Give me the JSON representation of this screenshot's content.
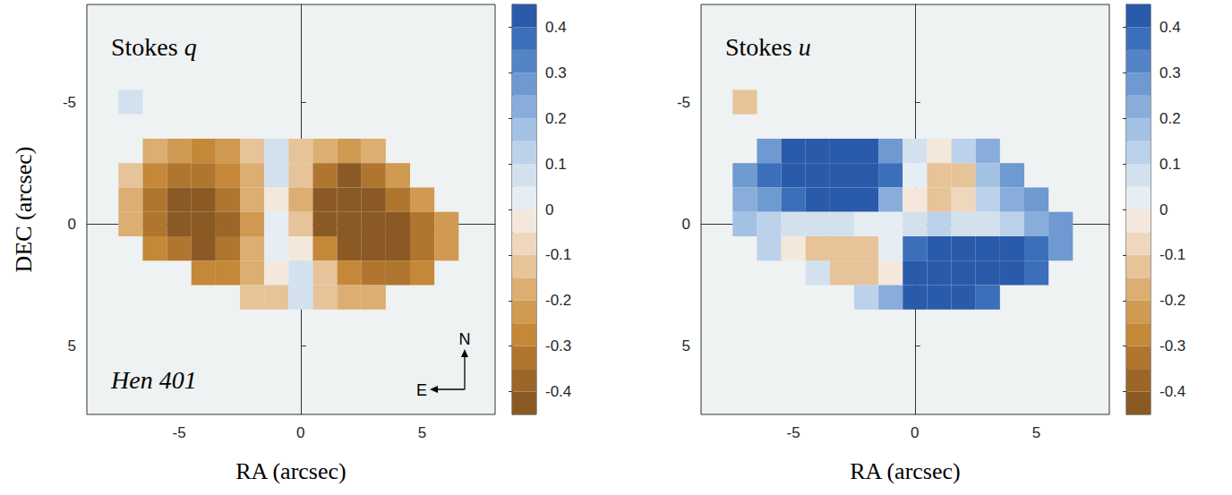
{
  "chart_data": [
    {
      "type": "heatmap",
      "title": "Stokes q",
      "annotation": "Hen 401",
      "compass": {
        "north": "N",
        "east": "E"
      },
      "xlabel": "RA (arcsec)",
      "ylabel": "DEC (arcsec)",
      "xlim": [
        -8.8,
        8
      ],
      "ylim": [
        7.8,
        -9
      ],
      "xticks": [
        -5,
        0,
        5
      ],
      "yticks": [
        -5,
        0,
        5
      ],
      "colorbar": {
        "range": [
          -0.45,
          0.45
        ],
        "ticks": [
          -0.4,
          -0.3,
          -0.2,
          -0.1,
          0,
          0.1,
          0.2,
          0.3,
          0.4
        ],
        "colors": [
          "#8b5a24",
          "#9c6628",
          "#b0752f",
          "#c48838",
          "#d19a52",
          "#dcae72",
          "#e7c39a",
          "#efd7bd",
          "#f4e8dc",
          "#e6eef4",
          "#d3e1ef",
          "#bcd2ea",
          "#a3c1e3",
          "#88addb",
          "#6e99d1",
          "#5484c6",
          "#3c6fba",
          "#2a5aaa"
        ]
      },
      "cells": [
        [
          -7,
          -5,
          0.05
        ],
        [
          -6,
          -3,
          -0.2
        ],
        [
          -5,
          -3,
          -0.25
        ],
        [
          -4,
          -3,
          -0.3
        ],
        [
          -3,
          -3,
          -0.25
        ],
        [
          -2,
          -3,
          -0.15
        ],
        [
          -1,
          -3,
          0.05
        ],
        [
          0,
          -3,
          -0.1
        ],
        [
          1,
          -3,
          -0.2
        ],
        [
          2,
          -3,
          -0.25
        ],
        [
          3,
          -3,
          -0.2
        ],
        [
          -7,
          -2,
          -0.15
        ],
        [
          -6,
          -2,
          -0.3
        ],
        [
          -5,
          -2,
          -0.35
        ],
        [
          -4,
          -2,
          -0.35
        ],
        [
          -3,
          -2,
          -0.3
        ],
        [
          -2,
          -2,
          -0.2
        ],
        [
          -1,
          -2,
          0.05
        ],
        [
          0,
          -2,
          -0.15
        ],
        [
          1,
          -2,
          -0.35
        ],
        [
          2,
          -2,
          -0.4
        ],
        [
          3,
          -2,
          -0.35
        ],
        [
          4,
          -2,
          -0.25
        ],
        [
          -7,
          -1,
          -0.2
        ],
        [
          -6,
          -1,
          -0.35
        ],
        [
          -5,
          -1,
          -0.4
        ],
        [
          -4,
          -1,
          -0.4
        ],
        [
          -3,
          -1,
          -0.35
        ],
        [
          -2,
          -1,
          -0.2
        ],
        [
          -1,
          -1,
          -0.02
        ],
        [
          0,
          -1,
          -0.2
        ],
        [
          1,
          -1,
          -0.4
        ],
        [
          2,
          -1,
          -0.45
        ],
        [
          3,
          -1,
          -0.42
        ],
        [
          4,
          -1,
          -0.35
        ],
        [
          5,
          -1,
          -0.25
        ],
        [
          -7,
          0,
          -0.2
        ],
        [
          -6,
          0,
          -0.35
        ],
        [
          -5,
          0,
          -0.4
        ],
        [
          -4,
          0,
          -0.42
        ],
        [
          -3,
          0,
          -0.38
        ],
        [
          -2,
          0,
          -0.22
        ],
        [
          -1,
          0,
          0
        ],
        [
          0,
          0,
          -0.15
        ],
        [
          1,
          0,
          -0.4
        ],
        [
          2,
          0,
          -0.43
        ],
        [
          3,
          0,
          -0.43
        ],
        [
          4,
          0,
          -0.4
        ],
        [
          5,
          0,
          -0.35
        ],
        [
          6,
          0,
          -0.25
        ],
        [
          -6,
          1,
          -0.3
        ],
        [
          -5,
          1,
          -0.35
        ],
        [
          -4,
          1,
          -0.4
        ],
        [
          -3,
          1,
          -0.35
        ],
        [
          -2,
          1,
          -0.2
        ],
        [
          -1,
          1,
          0.02
        ],
        [
          0,
          1,
          -0.05
        ],
        [
          1,
          1,
          -0.3
        ],
        [
          2,
          1,
          -0.4
        ],
        [
          3,
          1,
          -0.42
        ],
        [
          4,
          1,
          -0.4
        ],
        [
          5,
          1,
          -0.35
        ],
        [
          6,
          1,
          -0.25
        ],
        [
          -4,
          2,
          -0.3
        ],
        [
          -3,
          2,
          -0.3
        ],
        [
          -2,
          2,
          -0.2
        ],
        [
          -1,
          2,
          -0.05
        ],
        [
          0,
          2,
          0.08
        ],
        [
          1,
          2,
          -0.15
        ],
        [
          2,
          2,
          -0.3
        ],
        [
          3,
          2,
          -0.35
        ],
        [
          4,
          2,
          -0.35
        ],
        [
          5,
          2,
          -0.3
        ],
        [
          -2,
          3,
          -0.15
        ],
        [
          -1,
          3,
          -0.1
        ],
        [
          0,
          3,
          0.05
        ],
        [
          1,
          3,
          -0.1
        ],
        [
          2,
          3,
          -0.2
        ],
        [
          3,
          3,
          -0.2
        ]
      ]
    },
    {
      "type": "heatmap",
      "title": "Stokes u",
      "xlabel": "RA (arcsec)",
      "xlim": [
        -8.8,
        8
      ],
      "ylim": [
        7.8,
        -9
      ],
      "xticks": [
        -5,
        0,
        5
      ],
      "yticks": [
        -5,
        0,
        5
      ],
      "colorbar": {
        "range": [
          -0.45,
          0.45
        ],
        "ticks": [
          -0.4,
          -0.3,
          -0.2,
          -0.1,
          0,
          0.1,
          0.2,
          0.3,
          0.4
        ],
        "colors": [
          "#8b5a24",
          "#9c6628",
          "#b0752f",
          "#c48838",
          "#d19a52",
          "#dcae72",
          "#e7c39a",
          "#efd7bd",
          "#f4e8dc",
          "#e6eef4",
          "#d3e1ef",
          "#bcd2ea",
          "#a3c1e3",
          "#88addb",
          "#6e99d1",
          "#5484c6",
          "#3c6fba",
          "#2a5aaa"
        ]
      },
      "cells": [
        [
          -7,
          -5,
          -0.1
        ],
        [
          -6,
          -3,
          0.3
        ],
        [
          -5,
          -3,
          0.4
        ],
        [
          -4,
          -3,
          0.45
        ],
        [
          -3,
          -3,
          0.45
        ],
        [
          -2,
          -3,
          0.4
        ],
        [
          -1,
          -3,
          0.3
        ],
        [
          0,
          -3,
          0.05
        ],
        [
          1,
          -3,
          -0.05
        ],
        [
          2,
          -3,
          0.1
        ],
        [
          3,
          -3,
          0.2
        ],
        [
          -7,
          -2,
          0.3
        ],
        [
          -6,
          -2,
          0.35
        ],
        [
          -5,
          -2,
          0.4
        ],
        [
          -4,
          -2,
          0.45
        ],
        [
          -3,
          -2,
          0.45
        ],
        [
          -2,
          -2,
          0.45
        ],
        [
          -1,
          -2,
          0.35
        ],
        [
          0,
          -2,
          0
        ],
        [
          1,
          -2,
          -0.12
        ],
        [
          2,
          -2,
          -0.1
        ],
        [
          3,
          -2,
          0.15
        ],
        [
          4,
          -2,
          0.3
        ],
        [
          -7,
          -1,
          0.2
        ],
        [
          -6,
          -1,
          0.3
        ],
        [
          -5,
          -1,
          0.35
        ],
        [
          -4,
          -1,
          0.4
        ],
        [
          -3,
          -1,
          0.4
        ],
        [
          -2,
          -1,
          0.4
        ],
        [
          -1,
          -1,
          0.25
        ],
        [
          0,
          -1,
          -0.05
        ],
        [
          1,
          -1,
          -0.12
        ],
        [
          2,
          -1,
          -0.08
        ],
        [
          3,
          -1,
          0.1
        ],
        [
          4,
          -1,
          0.2
        ],
        [
          5,
          -1,
          0.3
        ],
        [
          -7,
          0,
          0.15
        ],
        [
          -6,
          0,
          0.1
        ],
        [
          -5,
          0,
          0.05
        ],
        [
          -4,
          0,
          0.05
        ],
        [
          -3,
          0,
          0.05
        ],
        [
          -2,
          0,
          0.03
        ],
        [
          -1,
          0,
          0
        ],
        [
          0,
          0,
          0.05
        ],
        [
          1,
          0,
          0.1
        ],
        [
          2,
          0,
          0.05
        ],
        [
          3,
          0,
          0.05
        ],
        [
          4,
          0,
          0.1
        ],
        [
          5,
          0,
          0.2
        ],
        [
          6,
          0,
          0.3
        ],
        [
          -6,
          1,
          0.1
        ],
        [
          -5,
          1,
          -0.05
        ],
        [
          -4,
          1,
          -0.1
        ],
        [
          -3,
          1,
          -0.15
        ],
        [
          -2,
          1,
          -0.12
        ],
        [
          -1,
          1,
          0
        ],
        [
          0,
          1,
          0.35
        ],
        [
          1,
          1,
          0.45
        ],
        [
          2,
          1,
          0.45
        ],
        [
          3,
          1,
          0.45
        ],
        [
          4,
          1,
          0.4
        ],
        [
          5,
          1,
          0.35
        ],
        [
          6,
          1,
          0.3
        ],
        [
          -4,
          2,
          0.05
        ],
        [
          -3,
          2,
          -0.1
        ],
        [
          -2,
          2,
          -0.12
        ],
        [
          -1,
          2,
          -0.05
        ],
        [
          0,
          2,
          0.4
        ],
        [
          1,
          2,
          0.45
        ],
        [
          2,
          2,
          0.45
        ],
        [
          3,
          2,
          0.45
        ],
        [
          4,
          2,
          0.4
        ],
        [
          5,
          2,
          0.35
        ],
        [
          -2,
          3,
          0.1
        ],
        [
          -1,
          3,
          0.2
        ],
        [
          0,
          3,
          0.4
        ],
        [
          1,
          3,
          0.45
        ],
        [
          2,
          3,
          0.4
        ],
        [
          3,
          3,
          0.35
        ]
      ]
    }
  ]
}
